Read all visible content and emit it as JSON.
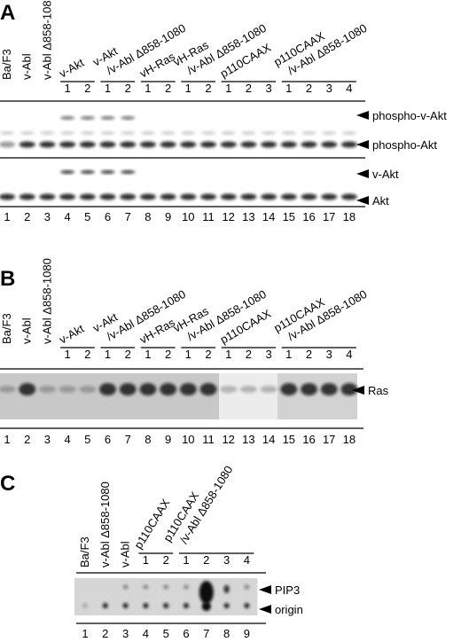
{
  "panels": [
    {
      "letter": "A",
      "lane_labels": [
        "Ba/F3",
        "v-Abl",
        "v-Abl Δ858-1080"
      ],
      "groups": [
        {
          "label": [
            "v-Akt"
          ],
          "lanes": [
            1,
            2
          ]
        },
        {
          "label": [
            "v-Akt",
            "/v-Abl Δ858-1080"
          ],
          "lanes": [
            1,
            2
          ]
        },
        {
          "label": [
            "vH-Ras"
          ],
          "lanes": [
            1,
            2
          ]
        },
        {
          "label": [
            "vH-Ras",
            "/v-Abl Δ858-1080"
          ],
          "lanes": [
            1,
            2
          ]
        },
        {
          "label": [
            "p110CAAX"
          ],
          "lanes": [
            1,
            2,
            3
          ]
        },
        {
          "label": [
            "p110CAAX",
            "/v-Abl Δ858-1080"
          ],
          "lanes": [
            1,
            2,
            3,
            4
          ]
        }
      ],
      "band_labels": [
        "phospho-v-Akt",
        "phospho-Akt",
        "v-Akt",
        "Akt"
      ],
      "lane_numbers": [
        1,
        2,
        3,
        4,
        5,
        6,
        7,
        8,
        9,
        10,
        11,
        12,
        13,
        14,
        15,
        16,
        17,
        18
      ]
    },
    {
      "letter": "B",
      "lane_labels": [
        "Ba/F3",
        "v-Abl",
        "v-Abl Δ858-1080"
      ],
      "groups": [
        {
          "label": [
            "v-Akt"
          ],
          "lanes": [
            1,
            2
          ]
        },
        {
          "label": [
            "v-Akt",
            "/v-Abl Δ858-1080"
          ],
          "lanes": [
            1,
            2
          ]
        },
        {
          "label": [
            "vH-Ras"
          ],
          "lanes": [
            1,
            2
          ]
        },
        {
          "label": [
            "vH-Ras",
            "/v-Abl Δ858-1080"
          ],
          "lanes": [
            1,
            2
          ]
        },
        {
          "label": [
            "p110CAAX"
          ],
          "lanes": [
            1,
            2,
            3
          ]
        },
        {
          "label": [
            "p110CAAX",
            "/v-Abl Δ858-1080"
          ],
          "lanes": [
            1,
            2,
            3,
            4
          ]
        }
      ],
      "band_labels": [
        "Ras"
      ],
      "lane_numbers": [
        1,
        2,
        3,
        4,
        5,
        6,
        7,
        8,
        9,
        10,
        11,
        12,
        13,
        14,
        15,
        16,
        17,
        18
      ]
    },
    {
      "letter": "C",
      "lane_labels": [
        "Ba/F3",
        "v-Abl Δ858-1080",
        "v-Abl"
      ],
      "groups": [
        {
          "label": [
            "p110CAAX"
          ],
          "lanes": [
            1,
            2
          ]
        },
        {
          "label": [
            "p110CAAX",
            "/v-Abl Δ858-1080"
          ],
          "lanes": [
            1,
            2,
            3,
            4
          ]
        }
      ],
      "band_labels": [
        "PIP3",
        "origin"
      ],
      "lane_numbers": [
        1,
        2,
        3,
        4,
        5,
        6,
        7,
        8,
        9
      ]
    }
  ]
}
